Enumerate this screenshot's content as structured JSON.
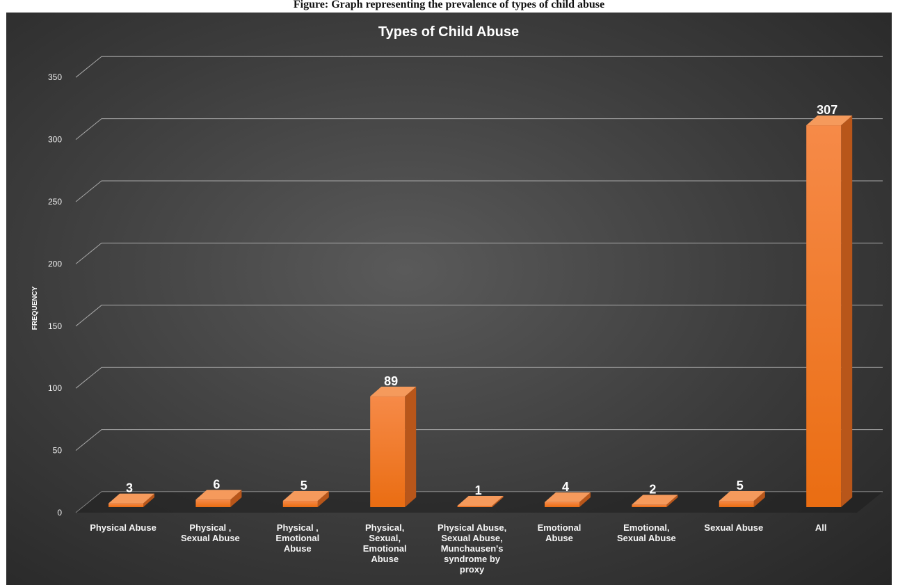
{
  "caption": "Figure: Graph representing the prevalence of types of child abuse",
  "colors": {
    "bar_front": "#f0781e",
    "bar_top": "#f59a5c",
    "bar_side": "#b8561a",
    "gridline": "#a8a8a8",
    "floor": "#1e1e1e",
    "text": "#ffffff"
  },
  "chart_data": {
    "type": "bar",
    "style": "3d-column",
    "title": "Types of Child Abuse",
    "xlabel": "",
    "ylabel": "FREQUENCY",
    "ylim": [
      0,
      350
    ],
    "yticks": [
      0,
      50,
      100,
      150,
      200,
      250,
      300,
      350
    ],
    "grid": true,
    "categories": [
      "Physical Abuse",
      "Physical , Sexual Abuse",
      "Physical , Emotional Abuse",
      "Physical, Sexual, Emotional Abuse",
      "Physical Abuse, Sexual Abuse, Munchausen's syndrome by proxy",
      "Emotional Abuse",
      "Emotional, Sexual Abuse",
      "Sexual Abuse",
      "All"
    ],
    "category_lines": [
      [
        "Physical Abuse"
      ],
      [
        "Physical ,",
        "Sexual Abuse"
      ],
      [
        "Physical ,",
        "Emotional",
        "Abuse"
      ],
      [
        "Physical,",
        "Sexual,",
        "Emotional",
        "Abuse"
      ],
      [
        "Physical Abuse,",
        "Sexual Abuse,",
        "Munchausen's",
        "syndrome by",
        "proxy"
      ],
      [
        "Emotional",
        "Abuse"
      ],
      [
        "Emotional,",
        "Sexual Abuse"
      ],
      [
        "Sexual Abuse"
      ],
      [
        "All"
      ]
    ],
    "values": [
      3,
      6,
      5,
      89,
      1,
      4,
      2,
      5,
      307
    ],
    "data_labels": [
      "3",
      "6",
      "5",
      "89",
      "1",
      "4",
      "2",
      "5",
      "307"
    ]
  }
}
